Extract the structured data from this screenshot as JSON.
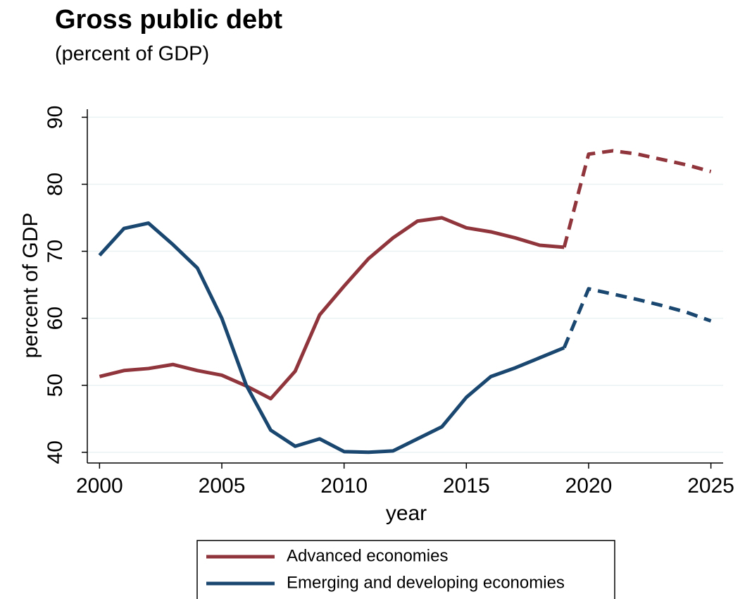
{
  "chart_data": {
    "type": "line",
    "title": "Gross public debt",
    "subtitle": "(percent of GDP)",
    "x_label": "year",
    "y_label": "percent of GDP",
    "x": [
      2000,
      2001,
      2002,
      2003,
      2004,
      2005,
      2006,
      2007,
      2008,
      2009,
      2010,
      2011,
      2012,
      2013,
      2014,
      2015,
      2016,
      2017,
      2018,
      2019,
      2020,
      2021,
      2022,
      2023,
      2024,
      2025
    ],
    "series": [
      {
        "name": "Advanced economies",
        "color": "#90353b",
        "values": [
          51.3,
          52.2,
          52.5,
          53.1,
          52.2,
          51.5,
          49.9,
          48.0,
          52.1,
          60.5,
          64.8,
          68.9,
          72.0,
          74.5,
          75.0,
          73.5,
          72.9,
          72.0,
          70.9,
          70.6,
          84.5,
          85.0,
          84.5,
          83.7,
          82.9,
          81.9
        ]
      },
      {
        "name": "Emerging and developing economies",
        "color": "#1a476f",
        "values": [
          69.4,
          73.4,
          74.2,
          71.0,
          67.5,
          60.0,
          50.0,
          43.3,
          40.9,
          42.0,
          40.1,
          40.0,
          40.2,
          42.0,
          43.8,
          48.2,
          51.3,
          52.6,
          54.1,
          55.6,
          64.4,
          63.6,
          62.8,
          61.9,
          60.9,
          59.6
        ]
      }
    ],
    "dashed_after": 2019,
    "xlim": [
      1999.5,
      2025.5
    ],
    "xticks": [
      2000,
      2005,
      2010,
      2015,
      2020,
      2025
    ],
    "ylim": [
      38.4,
      91.2
    ],
    "yticks": [
      40,
      50,
      60,
      70,
      80,
      90
    ],
    "grid": true,
    "legend_position": "bottom"
  }
}
